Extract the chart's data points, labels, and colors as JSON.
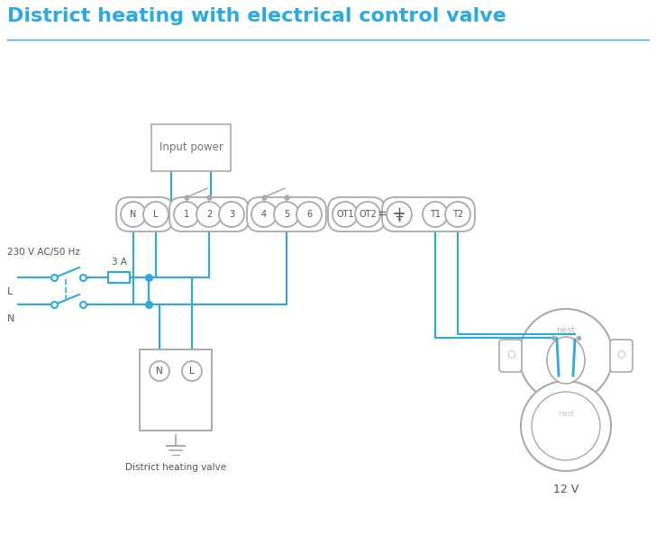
{
  "title": "District heating with electrical control valve",
  "title_color": "#29ABE2",
  "title_fontsize": 16,
  "wire_color": "#29ABE2",
  "gray_color": "#AAAAAA",
  "dark_gray": "#555555",
  "bg_color": "#ffffff",
  "input_power_label": "Input power",
  "valve_label": "District heating valve",
  "nest_label": "12 V",
  "fuse_label": "3 A",
  "label_230v": "230 V AC/50 Hz",
  "label_L": "L",
  "label_N": "N",
  "nest_text": "nest"
}
